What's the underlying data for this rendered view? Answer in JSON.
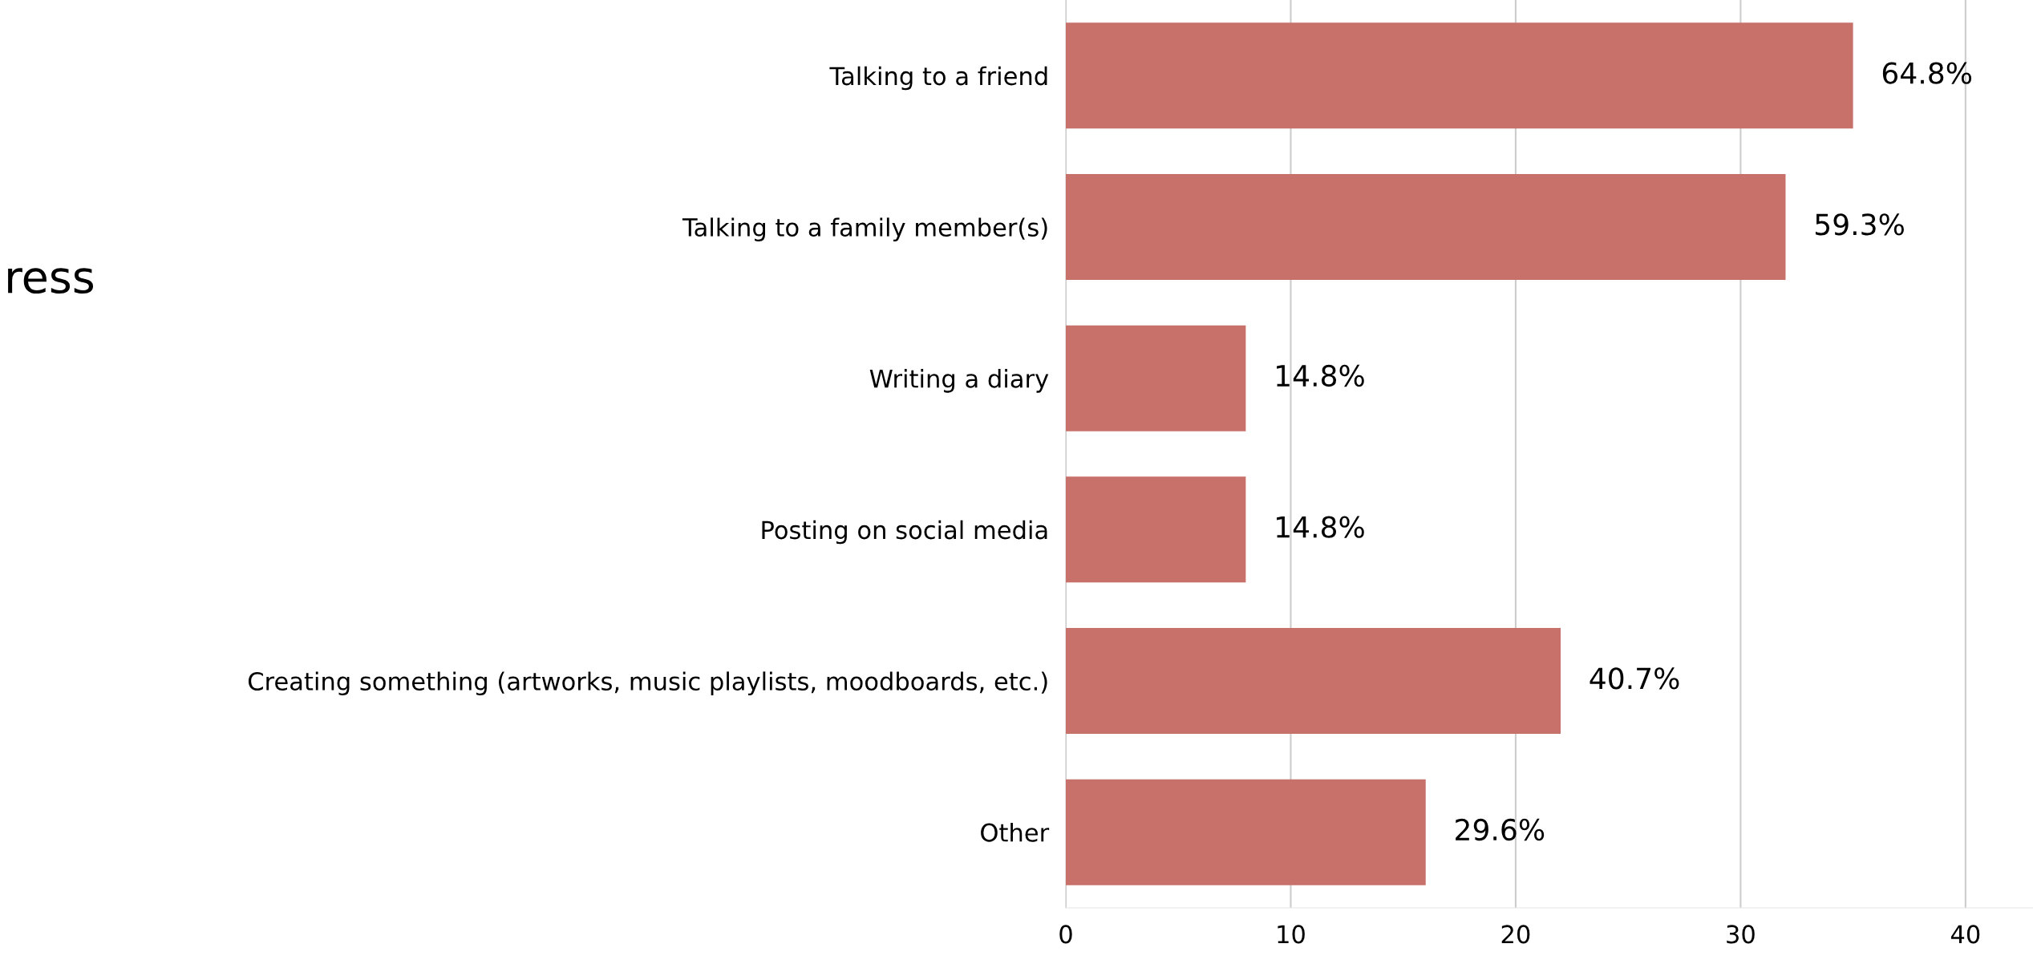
{
  "chart_data": {
    "type": "bar",
    "orientation": "horizontal",
    "title": "ress",
    "categories": [
      "Talking to a friend",
      "Talking to a family member(s)",
      "Writing a diary",
      "Posting on social media",
      "Creating something (artworks, music playlists, moodboards, etc.)",
      "Other"
    ],
    "values": [
      35,
      32,
      8,
      8,
      22,
      16
    ],
    "annotations": [
      {
        "text": "64.8%",
        "x": 35,
        "y": "Talking to a friend"
      },
      {
        "text": "59.3%",
        "x": 32,
        "y": "Talking to a family member(s)"
      },
      {
        "text": "14.8%",
        "x": 8,
        "y": "Writing a diary"
      },
      {
        "text": "14.8%",
        "x": 8,
        "y": "Posting on social media"
      },
      {
        "text": "40.7%",
        "x": 22,
        "y": "Creating something (artworks, music playlists, moodboards, etc.)"
      },
      {
        "text": "29.6%",
        "x": 16,
        "y": "Other"
      }
    ],
    "color": "#c8706a",
    "xlim": [
      0,
      43
    ],
    "xticks": [
      0,
      10,
      20,
      30,
      40
    ],
    "grid": "x"
  }
}
